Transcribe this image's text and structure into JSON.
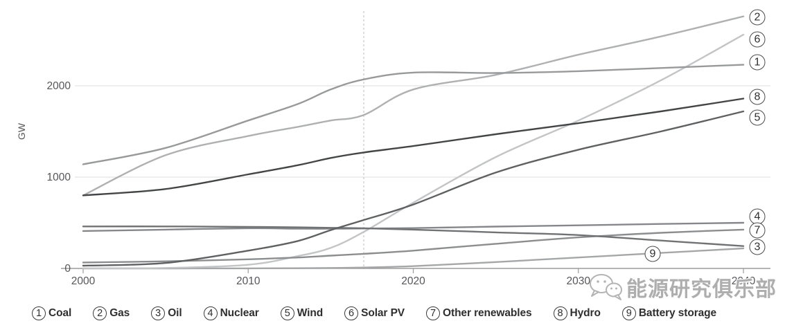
{
  "chart_data": {
    "type": "line",
    "title": "",
    "xlabel": "",
    "ylabel": "GW",
    "xlim": [
      2000,
      2040
    ],
    "ylim": [
      0,
      2800
    ],
    "x_ticks": [
      2000,
      2010,
      2020,
      2030,
      2040
    ],
    "y_ticks": [
      0,
      1000,
      2000
    ],
    "grid": "horizontal-only",
    "legend_position": "bottom",
    "history_projection_divider_year": 2017,
    "x": [
      2000,
      2005,
      2010,
      2013,
      2015,
      2017,
      2020,
      2025,
      2030,
      2035,
      2040
    ],
    "series": [
      {
        "num": "1",
        "name": "Coal",
        "color": "#97999b",
        "values": [
          1140,
          1320,
          1620,
          1800,
          1960,
          2070,
          2145,
          2140,
          2160,
          2195,
          2230
        ]
      },
      {
        "num": "2",
        "name": "Gas",
        "color": "#aeb0b2",
        "values": [
          800,
          1240,
          1450,
          1550,
          1620,
          1680,
          1960,
          2120,
          2340,
          2540,
          2760
        ]
      },
      {
        "num": "3",
        "name": "Oil",
        "color": "#707274",
        "values": [
          460,
          460,
          455,
          450,
          445,
          440,
          425,
          395,
          365,
          305,
          245
        ]
      },
      {
        "num": "4",
        "name": "Nuclear",
        "color": "#85878a",
        "values": [
          410,
          425,
          440,
          435,
          435,
          437,
          442,
          458,
          472,
          487,
          500
        ]
      },
      {
        "num": "5",
        "name": "Wind",
        "color": "#5e6062",
        "values": [
          30,
          60,
          195,
          300,
          420,
          530,
          700,
          1050,
          1300,
          1500,
          1720
        ]
      },
      {
        "num": "6",
        "name": "Solar PV",
        "color": "#c2c4c6",
        "values": [
          2,
          5,
          40,
          135,
          225,
          400,
          720,
          1220,
          1620,
          2060,
          2560
        ]
      },
      {
        "num": "7",
        "name": "Other renewables",
        "color": "#8b8d8f",
        "values": [
          65,
          78,
          100,
          120,
          140,
          160,
          195,
          270,
          340,
          390,
          425
        ]
      },
      {
        "num": "8",
        "name": "Hydro",
        "color": "#434547",
        "values": [
          800,
          870,
          1030,
          1130,
          1210,
          1270,
          1340,
          1470,
          1590,
          1720,
          1860
        ]
      },
      {
        "num": "9",
        "name": "Battery storage",
        "color": "#a4a6a8",
        "values": [
          0,
          0,
          1,
          2,
          5,
          10,
          25,
          70,
          120,
          170,
          220
        ]
      }
    ]
  },
  "watermark": {
    "text": "能源研究俱乐部",
    "icon": "wechat-logo"
  }
}
